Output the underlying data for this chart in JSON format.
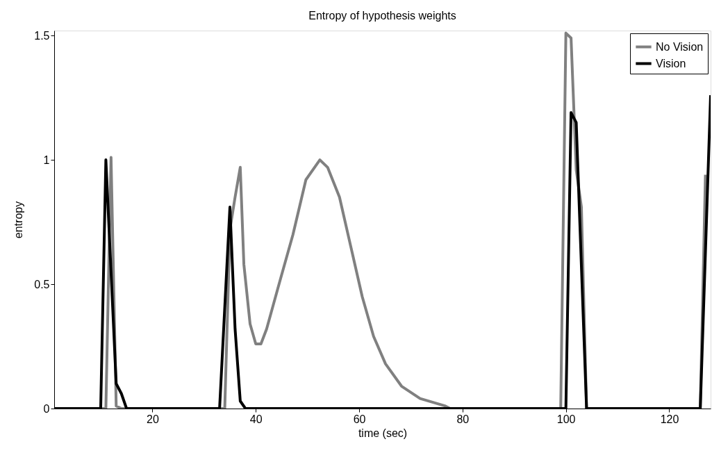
{
  "chart_data": {
    "type": "line",
    "title": "Entropy of hypothesis weights",
    "xlabel": "time (sec)",
    "ylabel": "entropy",
    "xlim": [
      1,
      128
    ],
    "xticks": [
      20,
      40,
      60,
      80,
      100,
      120
    ],
    "ylim": [
      0,
      1.52
    ],
    "yticks": [
      0,
      0.5,
      1,
      1.5
    ],
    "grid": false,
    "legend": "top right",
    "marker": "none",
    "line_style": "solid",
    "series": [
      {
        "name": "No Vision",
        "color": "#808080",
        "x": [
          1,
          11,
          12,
          13,
          14,
          34,
          35,
          36,
          37,
          37.7,
          38.9,
          40,
          41,
          42.1,
          44.5,
          47.2,
          49.7,
          52.4,
          53.9,
          56.2,
          58.4,
          60.6,
          62.8,
          65.1,
          68.2,
          71.8,
          76.7,
          77.6,
          99,
          100,
          101,
          102,
          103,
          104,
          126,
          127
        ],
        "values": [
          0,
          0,
          1.01,
          0.01,
          0,
          0,
          0.72,
          0.85,
          0.97,
          0.58,
          0.34,
          0.26,
          0.26,
          0.32,
          0.5,
          0.7,
          0.92,
          1.0,
          0.97,
          0.85,
          0.65,
          0.45,
          0.29,
          0.18,
          0.09,
          0.04,
          0.01,
          0,
          0,
          1.51,
          1.49,
          0.96,
          0.81,
          0,
          0,
          0.94
        ]
      },
      {
        "name": "Vision",
        "color": "#000000",
        "x": [
          1,
          10,
          11,
          13,
          14,
          15,
          33,
          35,
          36,
          37,
          38,
          100,
          101,
          102,
          104,
          126,
          128
        ],
        "values": [
          0,
          0,
          1.0,
          0.1,
          0.06,
          0,
          0,
          0.81,
          0.32,
          0.03,
          0,
          0,
          1.19,
          1.15,
          0,
          0,
          1.26
        ]
      }
    ]
  }
}
